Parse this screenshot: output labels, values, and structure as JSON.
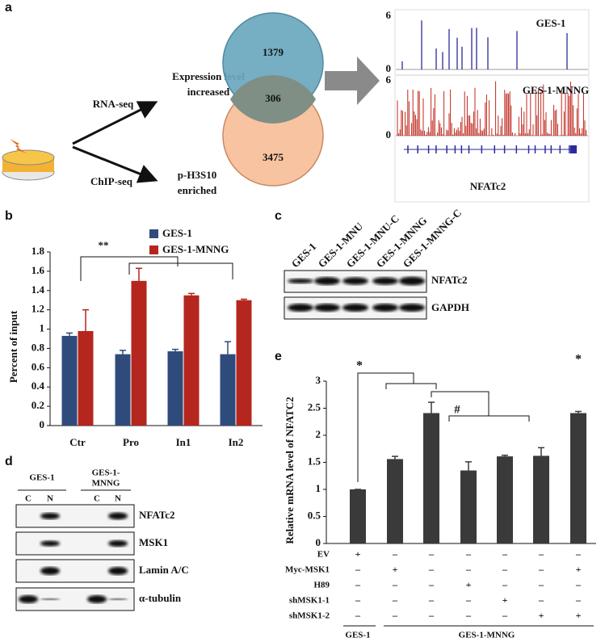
{
  "panel_a": {
    "label": "a",
    "methods": [
      "RNA-seq",
      "ChIP-seq"
    ],
    "outcomes": [
      [
        "Expression level",
        "increased"
      ],
      [
        "p-H3S10",
        "enriched"
      ]
    ],
    "venn": {
      "rna_only": 1379,
      "overlap": 306,
      "chip_only": 3475
    },
    "tracks": [
      {
        "name": "GES-1",
        "ymax": 6,
        "ymin": 0
      },
      {
        "name": "GES-1-MNNG",
        "ymax": 6,
        "ymin": 0
      }
    ],
    "gene": "NFATc2"
  },
  "panel_c": {
    "label": "c",
    "lanes": [
      "GES-1",
      "GES-1-MNU",
      "GES-1-MNU-C",
      "GES-1-MNNG",
      "GES-1-MNNG-C"
    ],
    "blots": [
      "NFATc2",
      "GAPDH"
    ]
  },
  "panel_d": {
    "label": "d",
    "groups": [
      [
        "GES-1"
      ],
      [
        "GES-1-",
        "MNNG"
      ]
    ],
    "lanes": [
      "C",
      "N",
      "C",
      "N"
    ],
    "blots": [
      "NFATc2",
      "MSK1",
      "Lamin A/C",
      "α-tubulin"
    ]
  },
  "chart_data": [
    {
      "type": "bar",
      "label": "b",
      "ylabel": "Percent of input",
      "categories": [
        "Ctr",
        "Pro",
        "In1",
        "In2"
      ],
      "series": [
        {
          "name": "GES-1",
          "color": "#2f4b7c",
          "values": [
            0.93,
            0.74,
            0.77,
            0.74
          ],
          "errors": [
            0.03,
            0.04,
            0.02,
            0.13
          ]
        },
        {
          "name": "GES-1-MNNG",
          "color": "#b5261e",
          "values": [
            0.98,
            1.5,
            1.35,
            1.3
          ],
          "errors": [
            0.22,
            0.13,
            0.02,
            0.01
          ]
        }
      ],
      "ylim": [
        0,
        1.8
      ],
      "yticks": [
        0,
        0.2,
        0.4,
        0.6,
        0.8,
        1,
        1.2,
        1.4,
        1.6,
        1.8
      ],
      "annotations": [
        "**"
      ]
    },
    {
      "type": "bar",
      "label": "e",
      "ylabel": "Relative mRNA level of NFATC2",
      "color": "#3a3a3a",
      "values": [
        1,
        1.56,
        2.41,
        1.35,
        1.61,
        1.62,
        2.41
      ],
      "errors": [
        0,
        0.05,
        0.2,
        0.16,
        0.02,
        0.15,
        0.03
      ],
      "ylim": [
        0,
        3
      ],
      "yticks": [
        0,
        0.5,
        1,
        1.5,
        2,
        2.5,
        3
      ],
      "conditions": [
        {
          "name": "EV",
          "signs": [
            "+",
            "–",
            "–",
            "–",
            "–",
            "–",
            "–"
          ]
        },
        {
          "name": "Myc-MSK1",
          "signs": [
            "–",
            "+",
            "–",
            "–",
            "–",
            "–",
            "+"
          ]
        },
        {
          "name": "H89",
          "signs": [
            "–",
            "–",
            "–",
            "+",
            "–",
            "–",
            "–"
          ]
        },
        {
          "name": "shMSK1-1",
          "signs": [
            "–",
            "–",
            "–",
            "–",
            "+",
            "–",
            "–"
          ]
        },
        {
          "name": "shMSK1-2",
          "signs": [
            "–",
            "–",
            "–",
            "–",
            "–",
            "+",
            "+"
          ]
        }
      ],
      "groups": [
        "GES-1",
        "GES-1-MNNG"
      ],
      "annotations": [
        "*",
        "#",
        "*"
      ]
    }
  ]
}
